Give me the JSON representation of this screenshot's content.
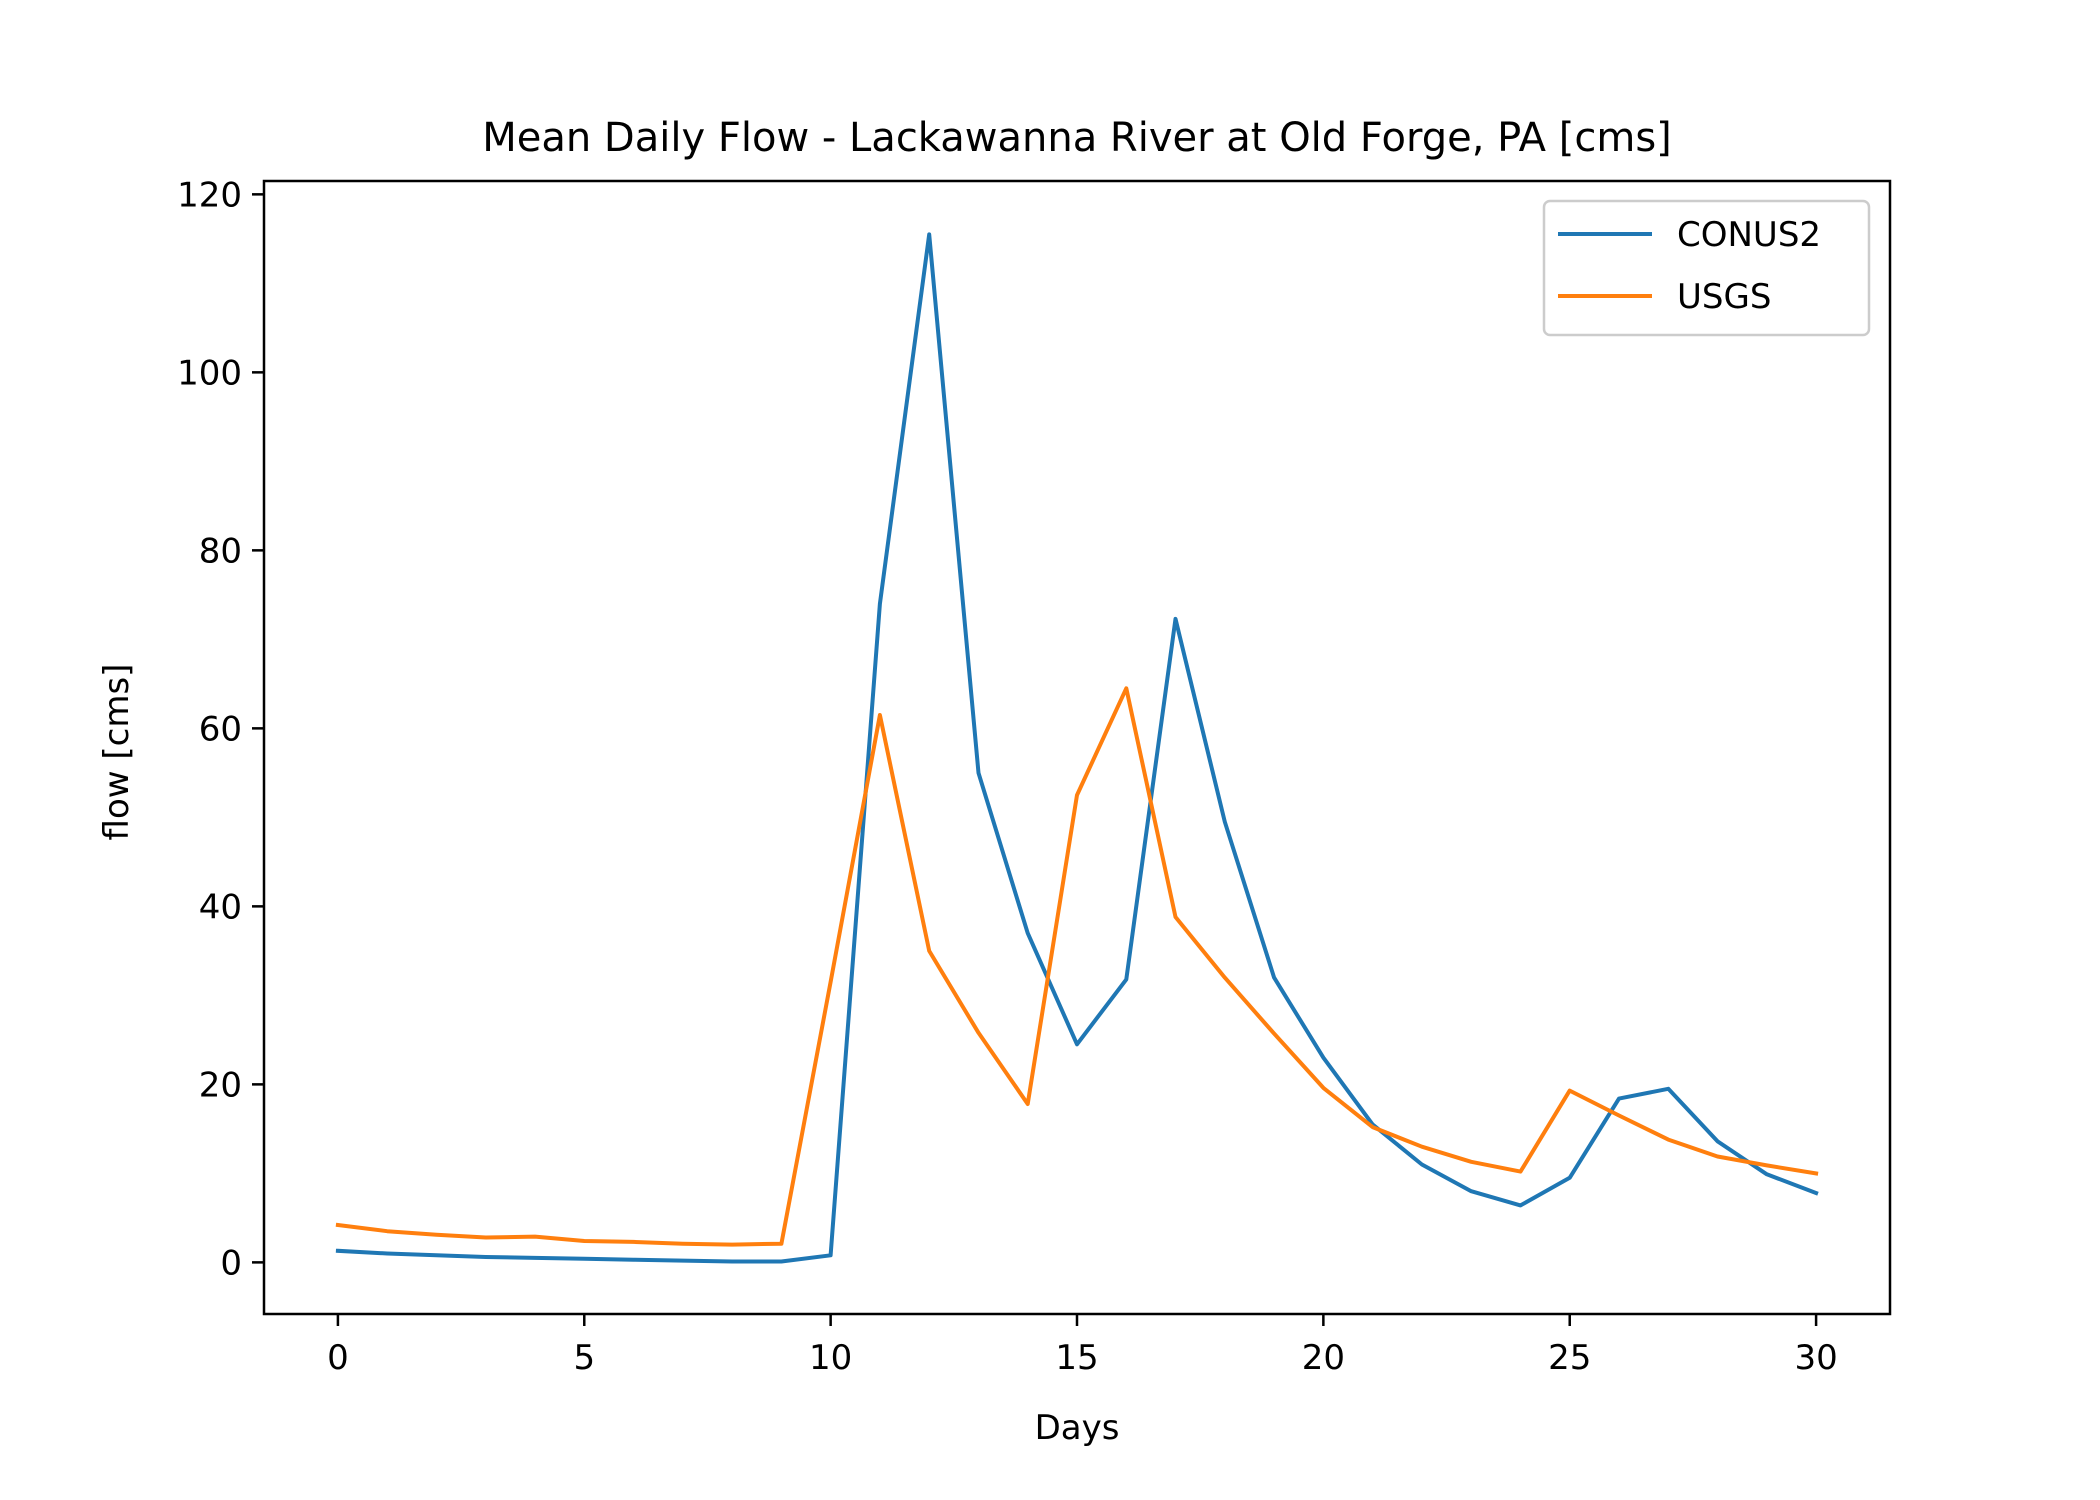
{
  "chart_data": {
    "type": "line",
    "title": "Mean Daily Flow - Lackawanna River at Old Forge, PA [cms]",
    "xlabel": "Days",
    "ylabel": "flow [cms]",
    "xlim": [
      -1.5,
      31.5
    ],
    "ylim": [
      -5.8,
      121.5
    ],
    "xticks": [
      0,
      5,
      10,
      15,
      20,
      25,
      30
    ],
    "yticks": [
      0,
      20,
      40,
      60,
      80,
      100,
      120
    ],
    "grid": false,
    "legend_position": "top-right",
    "x": [
      0,
      1,
      2,
      3,
      4,
      5,
      6,
      7,
      8,
      9,
      10,
      11,
      12,
      13,
      14,
      15,
      16,
      17,
      18,
      19,
      20,
      21,
      22,
      23,
      24,
      25,
      26,
      27,
      28,
      29,
      30
    ],
    "series": [
      {
        "name": "CONUS2",
        "color": "#1f77b4",
        "values": [
          1.3,
          1.0,
          0.8,
          0.6,
          0.5,
          0.4,
          0.3,
          0.2,
          0.1,
          0.1,
          0.8,
          74.0,
          115.5,
          55.0,
          37.0,
          24.5,
          31.8,
          72.3,
          49.5,
          32.0,
          23.0,
          15.5,
          11.0,
          8.0,
          6.4,
          9.5,
          18.4,
          19.5,
          13.6,
          9.9,
          7.8
        ]
      },
      {
        "name": "USGS",
        "color": "#ff7f0e",
        "values": [
          4.2,
          3.5,
          3.1,
          2.8,
          2.9,
          2.4,
          2.3,
          2.1,
          2.0,
          2.1,
          31.5,
          61.5,
          35.0,
          25.8,
          17.8,
          52.5,
          64.5,
          38.8,
          32.0,
          25.7,
          19.6,
          15.2,
          13.0,
          11.3,
          10.2,
          19.3,
          16.5,
          13.8,
          11.9,
          10.9,
          10.0
        ]
      }
    ]
  }
}
